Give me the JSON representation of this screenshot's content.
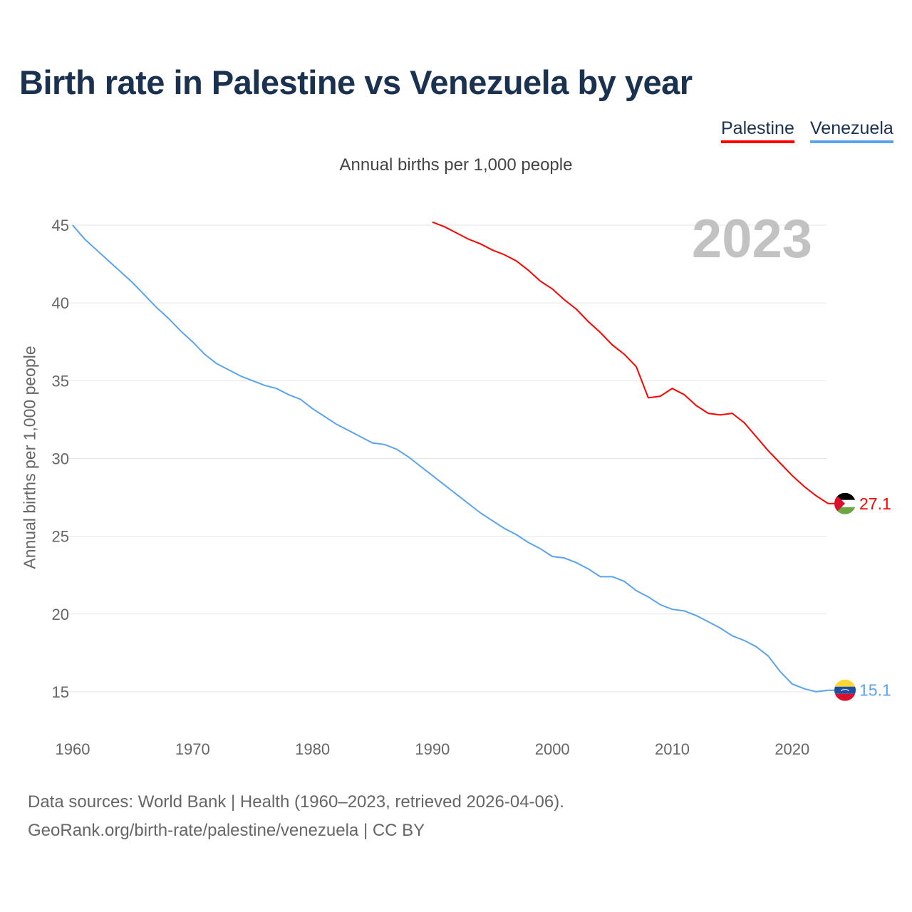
{
  "title": "Birth rate in Palestine vs Venezuela by year",
  "legend": {
    "palestine": "Palestine",
    "venezuela": "Venezuela"
  },
  "year_label": "2023",
  "source_line1": "Data sources: World Bank | Health (1960–2023, retrieved 2026-04-06).",
  "source_line2": "GeoRank.org/birth-rate/palestine/venezuela | CC BY",
  "chart_data": {
    "type": "line",
    "title": "Birth rate in Palestine vs Venezuela by year",
    "subtitle": "Annual births per 1,000 people",
    "ylabel": "Annual births per 1,000 people",
    "xlabel": "",
    "xlim": [
      1960,
      2023
    ],
    "ylim": [
      13,
      46
    ],
    "xticks": [
      1960,
      1970,
      1980,
      1990,
      2000,
      2010,
      2020
    ],
    "yticks": [
      15,
      20,
      25,
      30,
      35,
      40,
      45
    ],
    "grid": true,
    "legend_position": "top-right",
    "series": [
      {
        "name": "Palestine",
        "color": "#ff0000",
        "start_year": 1990,
        "end_label": "27.1",
        "values": [
          45.2,
          44.9,
          44.5,
          44.1,
          43.8,
          43.4,
          43.1,
          42.7,
          42.1,
          41.4,
          40.9,
          40.2,
          39.6,
          38.8,
          38.1,
          37.3,
          36.7,
          35.9,
          33.9,
          34.0,
          34.5,
          34.1,
          33.4,
          32.9,
          32.8,
          32.9,
          32.3,
          31.4,
          30.5,
          29.7,
          28.9,
          28.2,
          27.6,
          27.1
        ]
      },
      {
        "name": "Venezuela",
        "color": "#5ba3ec",
        "start_year": 1960,
        "end_label": "15.1",
        "values": [
          45.0,
          44.1,
          43.4,
          42.7,
          42.0,
          41.3,
          40.5,
          39.7,
          39.0,
          38.2,
          37.5,
          36.7,
          36.1,
          35.7,
          35.3,
          35.0,
          34.7,
          34.5,
          34.1,
          33.8,
          33.2,
          32.7,
          32.2,
          31.8,
          31.4,
          31.0,
          30.9,
          30.6,
          30.1,
          29.5,
          28.9,
          28.3,
          27.7,
          27.1,
          26.5,
          26.0,
          25.5,
          25.1,
          24.6,
          24.2,
          23.7,
          23.6,
          23.3,
          22.9,
          22.4,
          22.4,
          22.1,
          21.5,
          21.1,
          20.6,
          20.3,
          20.2,
          19.9,
          19.5,
          19.1,
          18.6,
          18.3,
          17.9,
          17.3,
          16.3,
          15.5,
          15.2,
          15.0,
          15.1
        ]
      }
    ]
  }
}
